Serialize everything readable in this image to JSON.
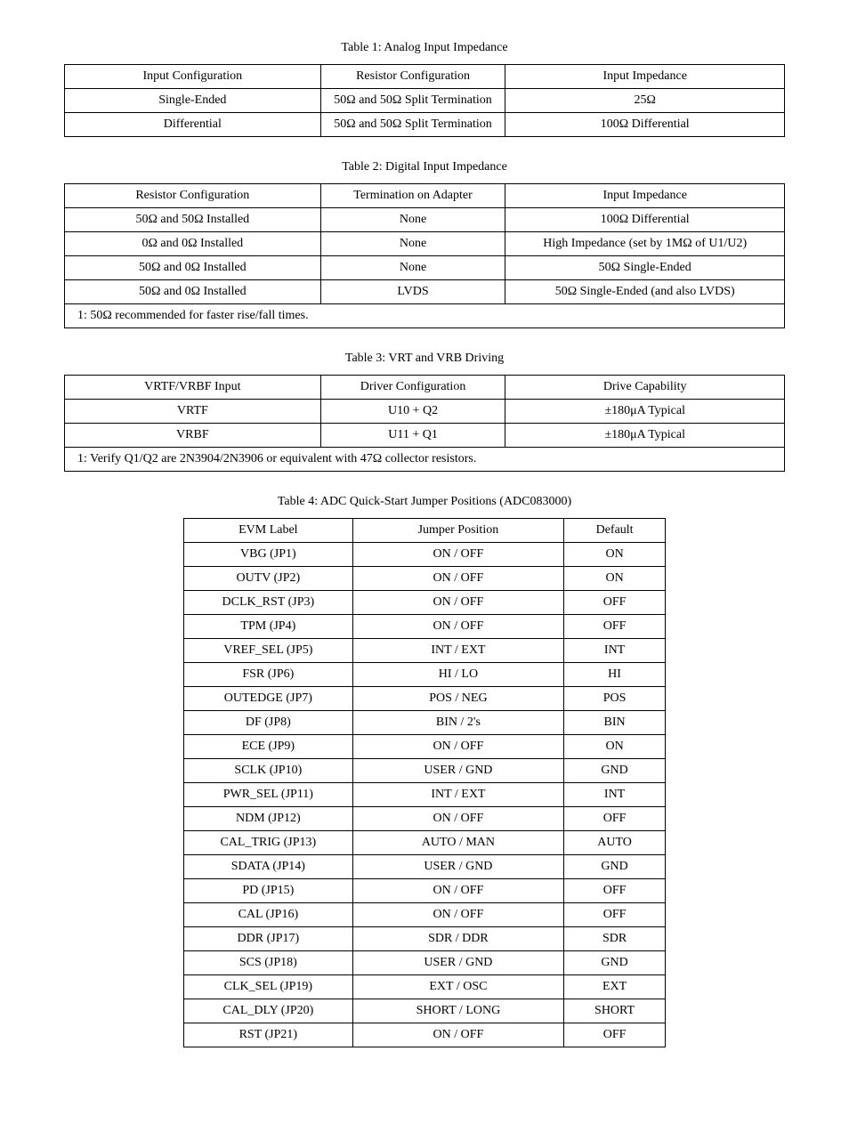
{
  "table1": {
    "caption": "Table 1: Analog Input Impedance",
    "input_config": "Input Configuration",
    "resistor": "Resistor Configuration",
    "input_imp": "Input Impedance",
    "row1": {
      "cfg": "Single-Ended",
      "res": "50Ω and 50Ω Split Termination",
      "imp": "25Ω"
    },
    "row2": {
      "cfg": "Differential",
      "res": "50Ω and 50Ω Split Termination",
      "imp": "100Ω Differential"
    }
  },
  "table2": {
    "caption": "Table 2: Digital Input Impedance",
    "resistor": "Resistor Configuration",
    "termination": "Termination on Adapter",
    "input_imp": "Input Impedance",
    "rows": [
      {
        "res": "50Ω and 50Ω Installed",
        "term": "None",
        "imp": "100Ω Differential"
      },
      {
        "res": "0Ω and 0Ω Installed",
        "term": "None",
        "imp": "High Impedance (set by 1MΩ of U1/U2)"
      },
      {
        "res": "50Ω and 0Ω Installed",
        "term": "None",
        "imp": "50Ω Single-Ended"
      },
      {
        "res": "50Ω and 0Ω Installed",
        "term": "LVDS",
        "imp": "50Ω Single-Ended (and also LVDS)"
      }
    ],
    "footnote": "1: 50Ω recommended for faster rise/fall times."
  },
  "table3": {
    "caption": "Table 3: VRT and VRB Driving",
    "vref_input": "VRTF/VRBF Input",
    "drv_config": "Driver Configuration",
    "drive": "Drive Capability",
    "row1": {
      "v": "VRTF",
      "d": "U10 + Q2",
      "c": "±180μA Typical"
    },
    "row2": {
      "v": "VRBF",
      "d": "U11 + Q1",
      "c": "±180μA Typical"
    },
    "footnote": "1: Verify Q1/Q2 are 2N3904/2N3906 or equivalent with 47Ω collector resistors."
  },
  "table4": {
    "caption": "Table 4: ADC Quick-Start Jumper Positions (ADC083000)",
    "header": {
      "c1": "EVM Label",
      "c2": "Jumper Position",
      "c3": "Default"
    },
    "rows": [
      {
        "c1": "VBG (JP1)",
        "c2": "ON / OFF",
        "c3": "ON"
      },
      {
        "c1": "OUTV (JP2)",
        "c2": "ON / OFF",
        "c3": "ON"
      },
      {
        "c1": "DCLK_RST (JP3)",
        "c2": "ON / OFF",
        "c3": "OFF"
      },
      {
        "c1": "TPM (JP4)",
        "c2": "ON / OFF",
        "c3": "OFF"
      },
      {
        "c1": "VREF_SEL (JP5)",
        "c2": "INT / EXT",
        "c3": "INT"
      },
      {
        "c1": "FSR (JP6)",
        "c2": "HI / LO",
        "c3": "HI"
      },
      {
        "c1": "OUTEDGE (JP7)",
        "c2": "POS / NEG",
        "c3": "POS"
      },
      {
        "c1": "DF (JP8)",
        "c2": "BIN / 2's",
        "c3": "BIN"
      },
      {
        "c1": "ECE (JP9)",
        "c2": "ON / OFF",
        "c3": "ON"
      },
      {
        "c1": "SCLK (JP10)",
        "c2": "USER / GND",
        "c3": "GND"
      },
      {
        "c1": "PWR_SEL (JP11)",
        "c2": "INT / EXT",
        "c3": "INT"
      },
      {
        "c1": "NDM (JP12)",
        "c2": "ON / OFF",
        "c3": "OFF"
      },
      {
        "c1": "CAL_TRIG (JP13)",
        "c2": "AUTO / MAN",
        "c3": "AUTO"
      },
      {
        "c1": "SDATA (JP14)",
        "c2": "USER / GND",
        "c3": "GND"
      },
      {
        "c1": "PD (JP15)",
        "c2": "ON / OFF",
        "c3": "OFF"
      },
      {
        "c1": "CAL (JP16)",
        "c2": "ON / OFF",
        "c3": "OFF"
      },
      {
        "c1": "DDR (JP17)",
        "c2": "SDR / DDR",
        "c3": "SDR"
      },
      {
        "c1": "SCS (JP18)",
        "c2": "USER / GND",
        "c3": "GND"
      },
      {
        "c1": "CLK_SEL (JP19)",
        "c2": "EXT / OSC",
        "c3": "EXT"
      },
      {
        "c1": "CAL_DLY (JP20)",
        "c2": "SHORT / LONG",
        "c3": "SHORT"
      },
      {
        "c1": "RST (JP21)",
        "c2": "ON / OFF",
        "c3": "OFF"
      }
    ]
  }
}
